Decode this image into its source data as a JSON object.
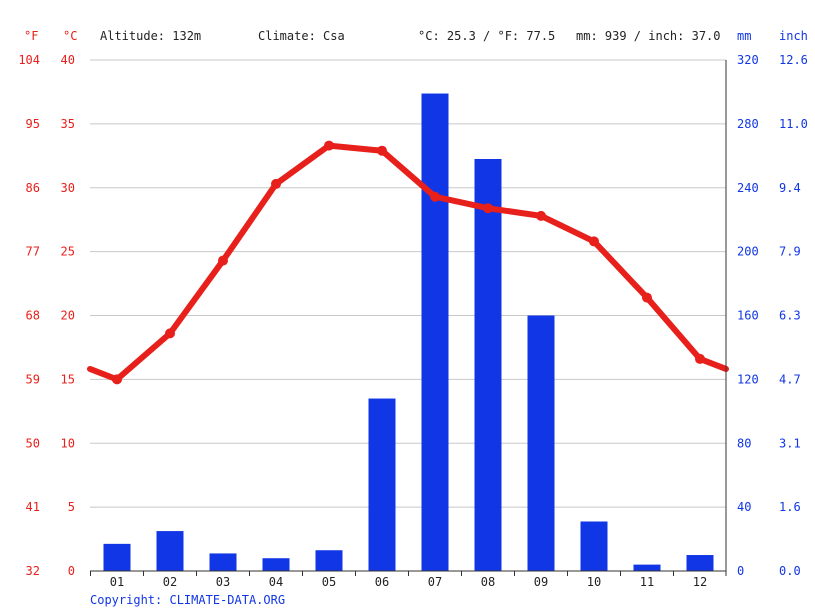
{
  "header": {
    "unit_f": "°F",
    "unit_c": "°C",
    "altitude": "Altitude: 132m",
    "climate": "Climate: Csa",
    "avg_temp": "°C: 25.3 / °F: 77.5",
    "precip_total": "mm: 939 / inch: 37.0",
    "unit_mm": "mm",
    "unit_inch": "inch"
  },
  "footer": {
    "copyright": "Copyright: CLIMATE-DATA.ORG"
  },
  "chart_data": {
    "type": "bar",
    "categories": [
      "01",
      "02",
      "03",
      "04",
      "05",
      "06",
      "07",
      "08",
      "09",
      "10",
      "11",
      "12"
    ],
    "series": [
      {
        "type": "bar",
        "axis": "right",
        "values": [
          17,
          25,
          11,
          8,
          13,
          108,
          299,
          258,
          160,
          31,
          4,
          10
        ]
      },
      {
        "type": "line",
        "axis": "left",
        "values": [
          15.0,
          18.6,
          24.3,
          30.3,
          33.3,
          32.9,
          29.3,
          28.4,
          27.8,
          25.8,
          21.4,
          16.6
        ]
      }
    ],
    "left_axis": {
      "ylim": [
        0,
        40
      ],
      "ticks_c": [
        "0",
        "5",
        "10",
        "15",
        "20",
        "25",
        "30",
        "35",
        "40"
      ],
      "ticks_f": [
        "32",
        "41",
        "50",
        "59",
        "68",
        "77",
        "86",
        "95",
        "104"
      ]
    },
    "right_axis": {
      "ylim": [
        0,
        320
      ],
      "ticks_mm": [
        "0",
        "40",
        "80",
        "120",
        "160",
        "200",
        "240",
        "280",
        "320"
      ],
      "ticks_inch": [
        "0.0",
        "1.6",
        "3.1",
        "4.7",
        "6.3",
        "7.9",
        "9.4",
        "11.0",
        "12.6"
      ]
    },
    "grid": true,
    "colors": {
      "temperature": "#e8201b",
      "precipitation": "#1136e6",
      "grid": "#c8c8c8"
    }
  }
}
